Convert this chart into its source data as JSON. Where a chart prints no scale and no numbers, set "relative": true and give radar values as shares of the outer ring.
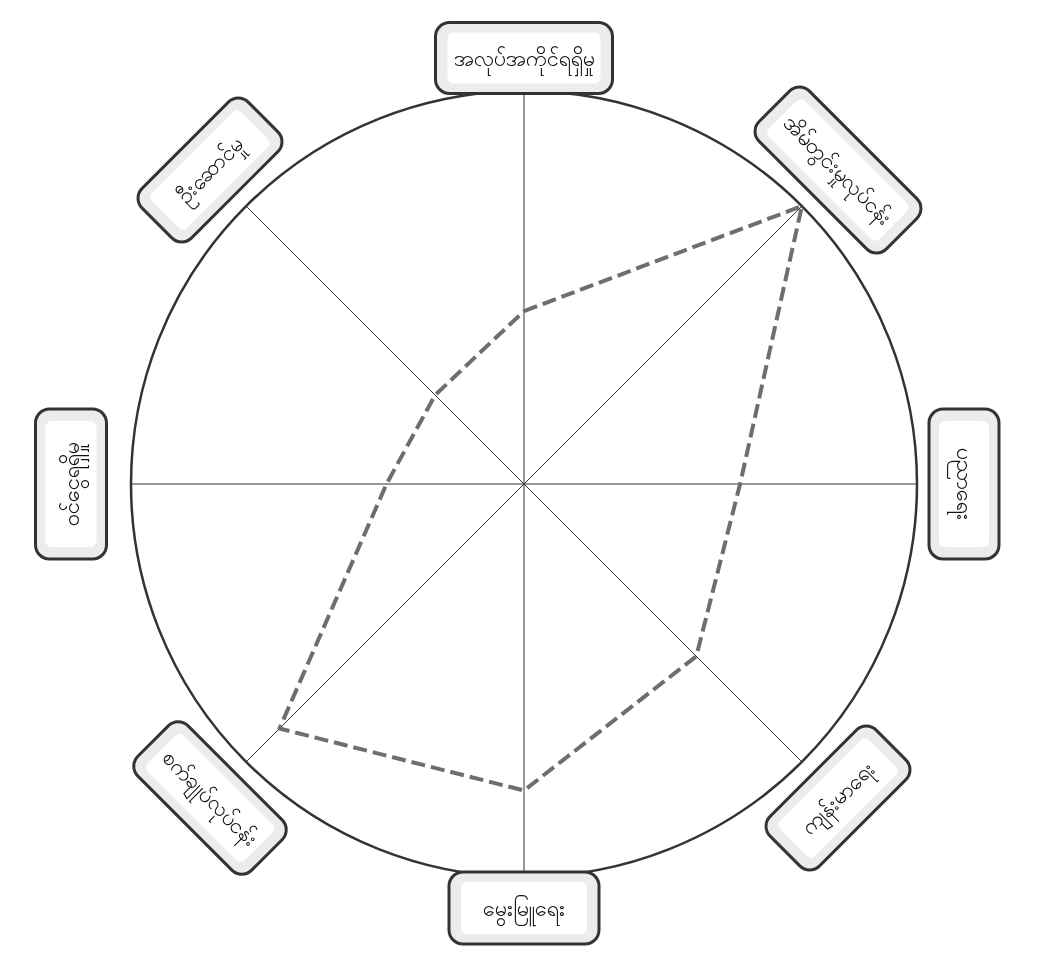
{
  "chart_data": {
    "type": "radar",
    "relative": true,
    "grid": true,
    "line_style": "dashed",
    "marker": "none",
    "categories": [
      "အလုပ်အကိုင်ရရှိမှု",
      "အိမ်တွင်းမှုလုပ်ငန်း",
      "ပညာရေး",
      "ကျန်းမာရေး",
      "မွေးမြူရေး",
      "စက်ချုပ်လုပ်ငန်း",
      "ဝင်ငွေရရှိမှု",
      "ဦးဆောင်မှု"
    ],
    "series": [
      {
        "color": "#6e6e6e",
        "values": [
          0.44,
          1,
          0.55,
          0.62,
          0.78,
          0.88,
          0.35,
          0.32
        ]
      }
    ]
  }
}
